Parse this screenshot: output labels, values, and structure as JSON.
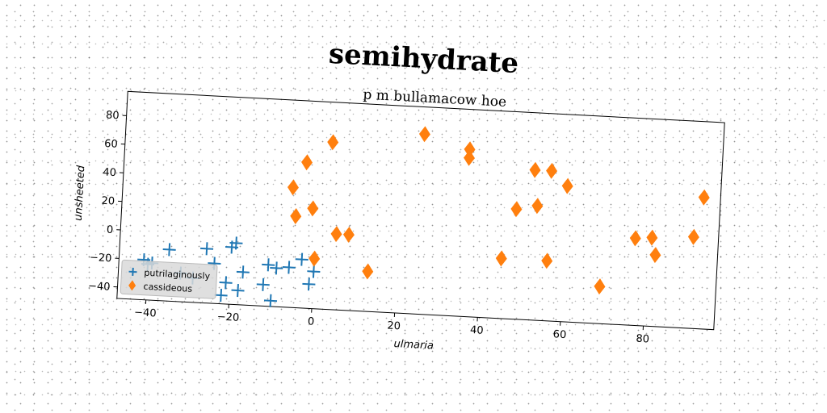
{
  "title": "semihydrate",
  "chart_data": {
    "type": "scatter",
    "subtitle": "p m bullamacow hoe",
    "xlabel": "ulmaria",
    "ylabel": "unsheeted",
    "xlim": [
      -47,
      97
    ],
    "ylim": [
      -48,
      97
    ],
    "xticks": [
      -40,
      -20,
      0,
      20,
      40,
      60,
      80
    ],
    "yticks": [
      -40,
      -20,
      0,
      20,
      40,
      60,
      80
    ],
    "grid": false,
    "legend_position": "lower left",
    "series": [
      {
        "name": "putrilaginously",
        "marker": "plus",
        "color": "#1f77b4",
        "points": [
          [
            -41,
            -20
          ],
          [
            -40,
            -23
          ],
          [
            -39,
            -22
          ],
          [
            -35,
            -12
          ],
          [
            -32,
            -28
          ],
          [
            -29,
            -31
          ],
          [
            -26,
            -10
          ],
          [
            -24,
            -20
          ],
          [
            -22,
            -42
          ],
          [
            -21,
            -33
          ],
          [
            -20,
            -8
          ],
          [
            -19,
            -5
          ],
          [
            -18,
            -38
          ],
          [
            -17,
            -25
          ],
          [
            -12,
            -33
          ],
          [
            -11,
            -19
          ],
          [
            -10,
            -44
          ],
          [
            -9,
            -21
          ],
          [
            -6,
            -20
          ],
          [
            -3,
            -14
          ],
          [
            -1,
            -31
          ],
          [
            0,
            -22
          ]
        ]
      },
      {
        "name": "cassideous",
        "marker": "diamond",
        "color": "#ff7f0e",
        "points": [
          [
            -6,
            36
          ],
          [
            -5,
            16
          ],
          [
            -3,
            54
          ],
          [
            -1,
            22
          ],
          [
            0,
            -13
          ],
          [
            3,
            69
          ],
          [
            5,
            5
          ],
          [
            8,
            5
          ],
          [
            13,
            -20
          ],
          [
            25,
            78
          ],
          [
            36,
            63
          ],
          [
            36,
            69
          ],
          [
            45,
            -6
          ],
          [
            48,
            29
          ],
          [
            52,
            57
          ],
          [
            53,
            32
          ],
          [
            56,
            57
          ],
          [
            56,
            -6
          ],
          [
            60,
            47
          ],
          [
            69,
            -22
          ],
          [
            77,
            13
          ],
          [
            81,
            14
          ],
          [
            82,
            2
          ],
          [
            91,
            16
          ],
          [
            93,
            44
          ]
        ]
      }
    ]
  }
}
